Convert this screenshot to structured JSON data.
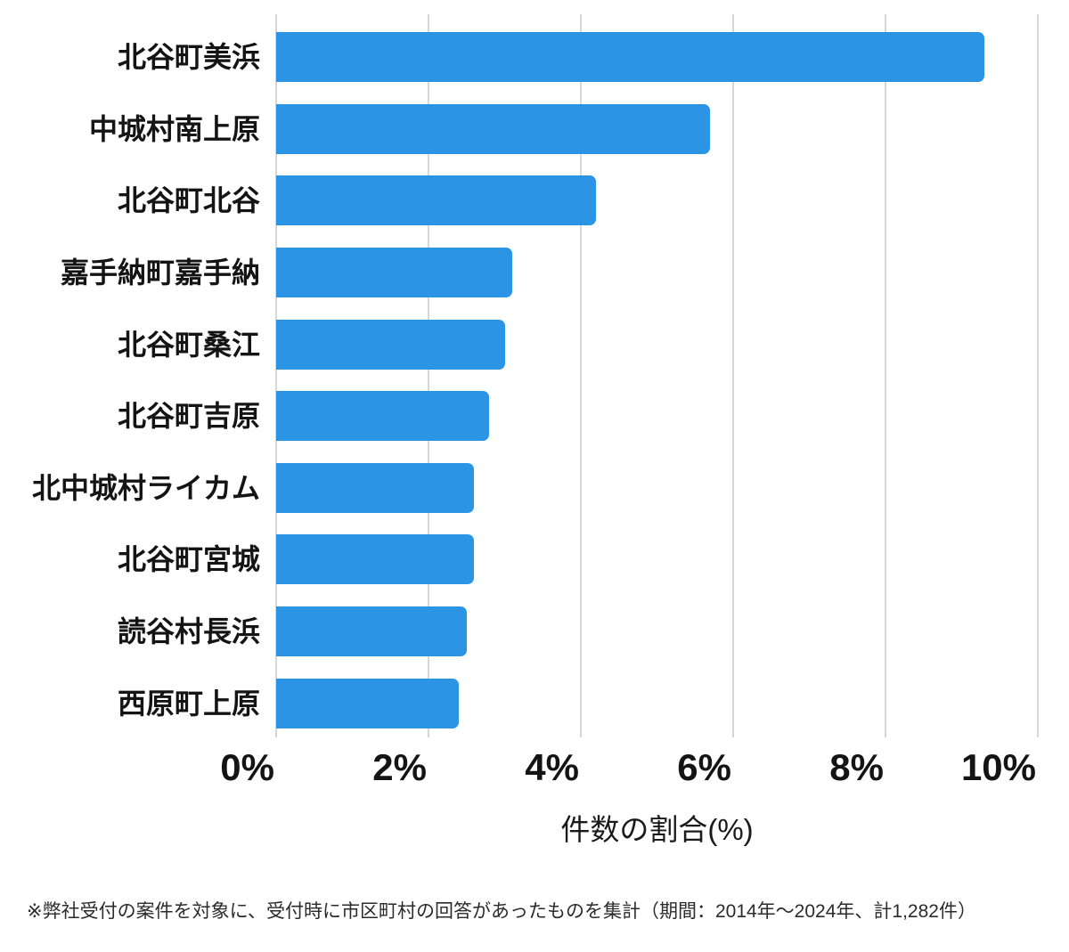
{
  "chart_data": {
    "type": "bar",
    "orientation": "horizontal",
    "title": "",
    "categories": [
      "北谷町美浜",
      "中城村南上原",
      "北谷町北谷",
      "嘉手納町嘉手納",
      "北谷町桑江",
      "北谷町吉原",
      "北中城村ライカム",
      "北谷町宮城",
      "読谷村長浜",
      "西原町上原"
    ],
    "values": [
      9.3,
      5.7,
      4.2,
      3.1,
      3.0,
      2.8,
      2.6,
      2.6,
      2.5,
      2.4
    ],
    "xlabel": "件数の割合(%)",
    "xlim": [
      0,
      10
    ],
    "xticks": [
      0,
      2,
      4,
      6,
      8,
      10
    ],
    "xtick_labels": [
      "0%",
      "2%",
      "4%",
      "6%",
      "8%",
      "10%"
    ],
    "grid": true,
    "legend_position": "none",
    "bar_color": "#2b94e4",
    "grid_color": "#d7d7d7",
    "text_color": "#141414"
  },
  "footnote": "※弊社受付の案件を対象に、受付時に市区町村の回答があったものを集計（期間：2014年～2024年、計1,282件）"
}
